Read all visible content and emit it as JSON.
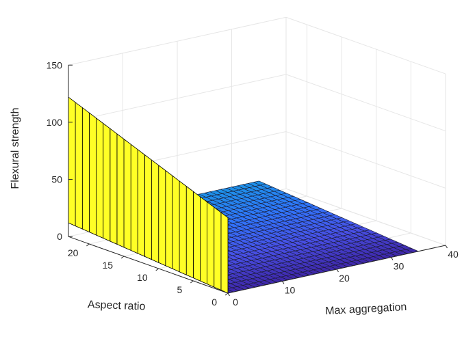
{
  "chart_data": {
    "type": "surface3d",
    "title": "",
    "xlabel": "Max aggregation",
    "ylabel": "Aspect ratio",
    "zlabel": "Flexural strength",
    "xlim": [
      0,
      40
    ],
    "ylim": [
      0,
      23
    ],
    "zlim": [
      0,
      150
    ],
    "xticks": [
      0,
      10,
      20,
      30,
      40
    ],
    "yticks": [
      0,
      5,
      10,
      15,
      20
    ],
    "zticks": [
      0,
      50,
      100,
      150
    ],
    "grid": true,
    "surface": {
      "x_range": [
        0,
        35
      ],
      "y_range": [
        0,
        23
      ],
      "description": "Flexural strength is ~12 at the y=23 edge and decreases linearly toward 0 as aspect ratio decreases; independent of max aggregation except a wall at x=0",
      "z_at_corners": {
        "x0_y0": 0,
        "x0_y23": 12,
        "x35_y0": 0,
        "x35_y23": 12
      },
      "wall_at_x0": {
        "z_top_at_y0": 66,
        "z_top_at_y23": 122,
        "color": "#ffff26"
      },
      "colormap": [
        "#3e26a8",
        "#4850e6",
        "#2f75fb",
        "#1d91e8"
      ]
    }
  }
}
